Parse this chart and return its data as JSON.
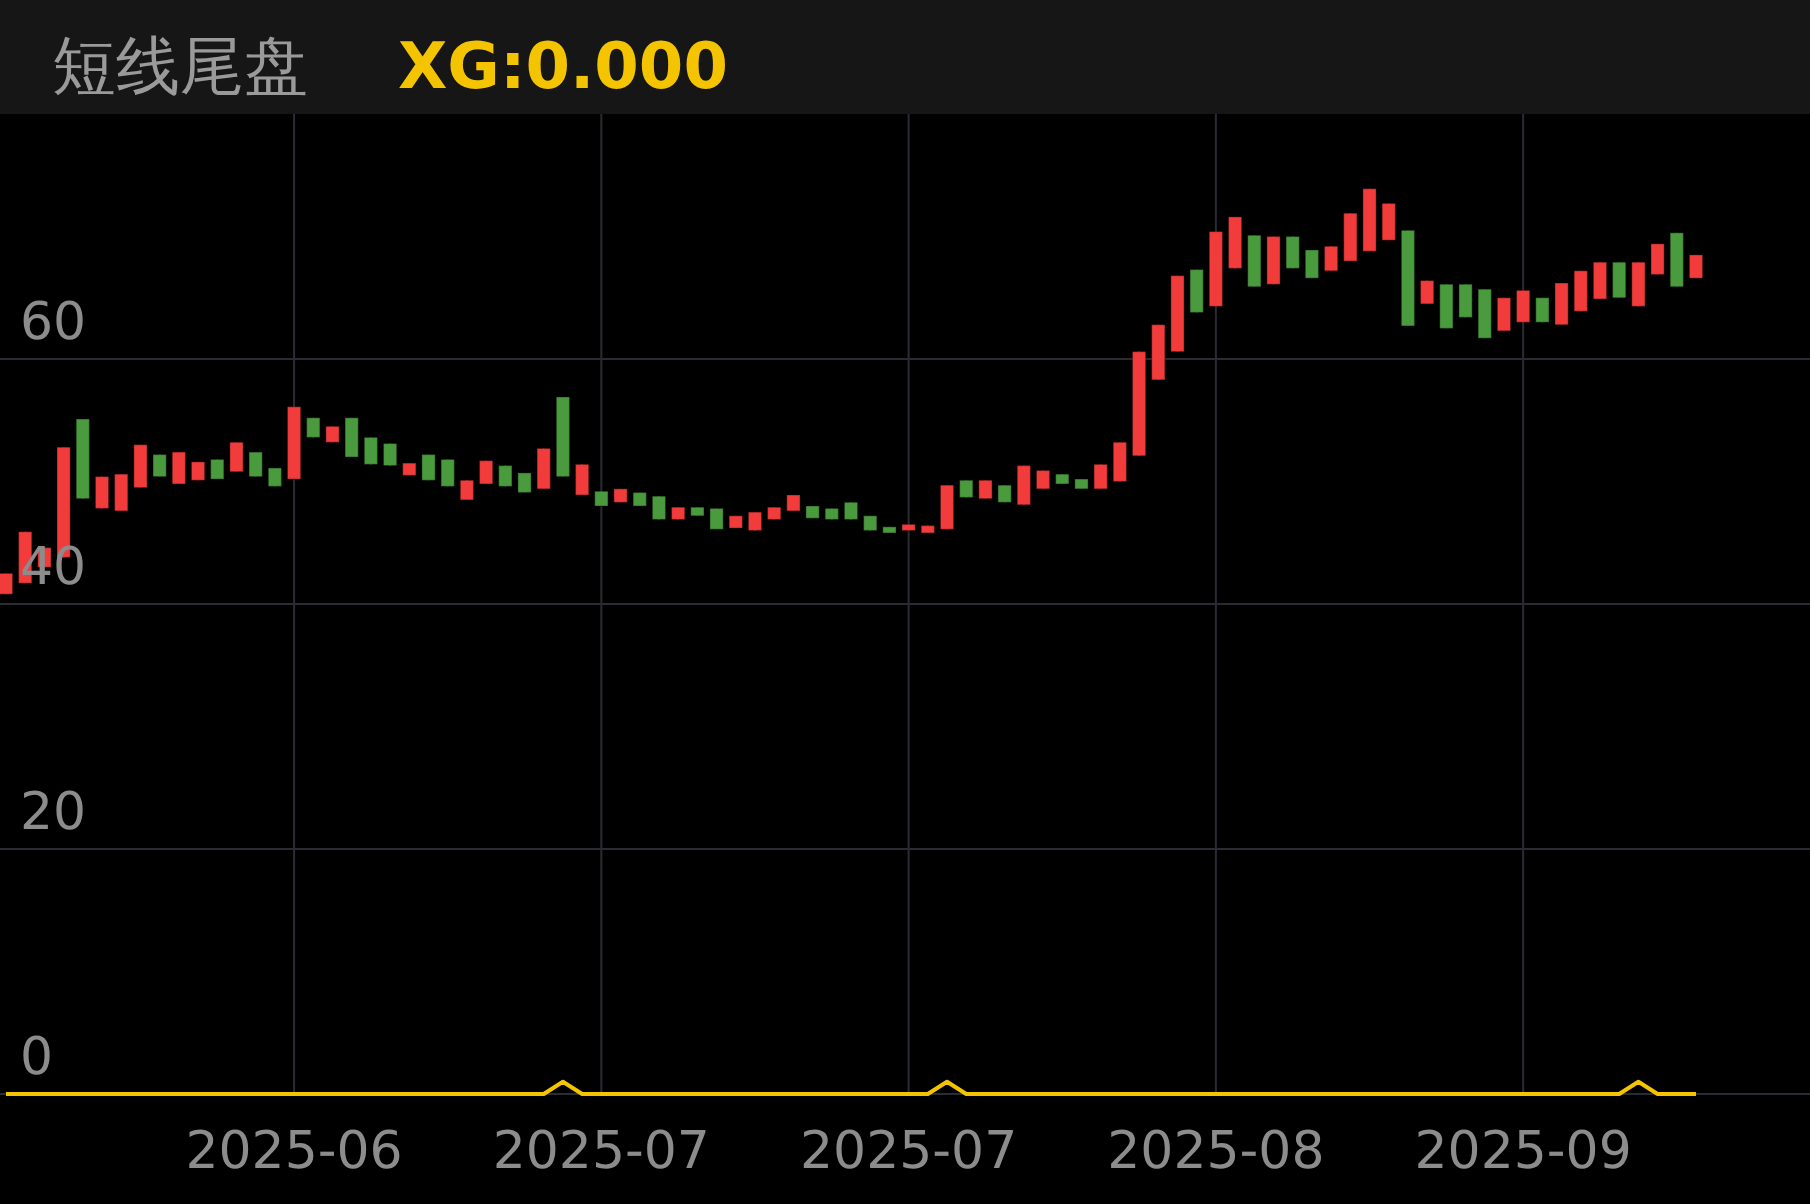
{
  "chart_data": {
    "type": "candlestick",
    "title": "短线尾盘",
    "subtitle": "XG:0.000",
    "categories": [
      null,
      null,
      null,
      null,
      null,
      null,
      null,
      null,
      null,
      null,
      null,
      null,
      null,
      null,
      null,
      "2025-06",
      null,
      null,
      null,
      null,
      null,
      null,
      null,
      null,
      null,
      null,
      null,
      null,
      null,
      null,
      null,
      "2025-07",
      null,
      null,
      null,
      null,
      null,
      null,
      null,
      null,
      null,
      null,
      null,
      null,
      null,
      null,
      null,
      "2025-07",
      null,
      null,
      null,
      null,
      null,
      null,
      null,
      null,
      null,
      null,
      null,
      null,
      null,
      null,
      null,
      "2025-08",
      null,
      null,
      null,
      null,
      null,
      null,
      null,
      null,
      null,
      null,
      null,
      null,
      null,
      null,
      null,
      "2025-09",
      null,
      null,
      null,
      null,
      null,
      null,
      null,
      null,
      null
    ],
    "ylim": [
      0,
      80
    ],
    "yticks": [
      0,
      20,
      40,
      60
    ],
    "grid": true,
    "series": [
      {
        "type": "candlestick",
        "colors": [
          "#f23c3c",
          "#f23c3c",
          "#f23c3c",
          "#f23c3c",
          "#4a9a3e",
          "#f23c3c",
          "#f23c3c",
          "#f23c3c",
          "#4a9a3e",
          "#f23c3c",
          "#f23c3c",
          "#4a9a3e",
          "#f23c3c",
          "#4a9a3e",
          "#4a9a3e",
          "#f23c3c",
          "#4a9a3e",
          "#f23c3c",
          "#4a9a3e",
          "#4a9a3e",
          "#4a9a3e",
          "#f23c3c",
          "#4a9a3e",
          "#4a9a3e",
          "#f23c3c",
          "#f23c3c",
          "#4a9a3e",
          "#4a9a3e",
          "#f23c3c",
          "#4a9a3e",
          "#f23c3c",
          "#4a9a3e",
          "#f23c3c",
          "#4a9a3e",
          "#4a9a3e",
          "#f23c3c",
          "#4a9a3e",
          "#4a9a3e",
          "#f23c3c",
          "#f23c3c",
          "#f23c3c",
          "#f23c3c",
          "#4a9a3e",
          "#4a9a3e",
          "#4a9a3e",
          "#4a9a3e",
          "#4a9a3e",
          "#f23c3c",
          "#f23c3c",
          "#f23c3c",
          "#4a9a3e",
          "#f23c3c",
          "#4a9a3e",
          "#f23c3c",
          "#f23c3c",
          "#4a9a3e",
          "#4a9a3e",
          "#f23c3c",
          "#f23c3c",
          "#f23c3c",
          "#f23c3c",
          "#f23c3c",
          "#4a9a3e",
          "#f23c3c",
          "#f23c3c",
          "#4a9a3e",
          "#f23c3c",
          "#4a9a3e",
          "#4a9a3e",
          "#f23c3c",
          "#f23c3c",
          "#f23c3c",
          "#f23c3c",
          "#4a9a3e",
          "#f23c3c",
          "#4a9a3e",
          "#4a9a3e",
          "#4a9a3e",
          "#f23c3c",
          "#f23c3c",
          "#4a9a3e",
          "#f23c3c",
          "#f23c3c",
          "#f23c3c",
          "#4a9a3e",
          "#f23c3c",
          "#f23c3c",
          "#4a9a3e",
          "#f23c3c"
        ],
        "ohlc": [
          [
            40.8,
            42.5,
            40.8,
            42.5
          ],
          [
            41.7,
            45.9,
            41.7,
            45.9
          ],
          [
            43.0,
            44.6,
            43.0,
            44.6
          ],
          [
            43.8,
            52.8,
            43.8,
            52.8
          ],
          [
            55.1,
            55.1,
            48.6,
            48.6
          ],
          [
            47.8,
            50.4,
            47.8,
            50.4
          ],
          [
            47.6,
            50.6,
            47.6,
            50.6
          ],
          [
            49.5,
            53.0,
            49.5,
            53.0
          ],
          [
            52.2,
            52.2,
            50.4,
            50.4
          ],
          [
            49.8,
            52.4,
            49.8,
            52.4
          ],
          [
            50.1,
            51.6,
            50.1,
            51.6
          ],
          [
            51.8,
            51.8,
            50.2,
            50.2
          ],
          [
            50.8,
            53.2,
            50.8,
            53.2
          ],
          [
            52.4,
            52.4,
            50.4,
            50.4
          ],
          [
            51.1,
            51.1,
            49.6,
            49.6
          ],
          [
            50.2,
            56.1,
            50.2,
            56.1
          ],
          [
            55.2,
            55.2,
            53.6,
            53.6
          ],
          [
            53.2,
            54.5,
            53.2,
            54.5
          ],
          [
            55.2,
            55.2,
            52.0,
            52.0
          ],
          [
            53.6,
            53.6,
            51.4,
            51.4
          ],
          [
            53.1,
            53.1,
            51.3,
            51.3
          ],
          [
            50.5,
            51.5,
            50.5,
            51.5
          ],
          [
            52.2,
            52.2,
            50.1,
            50.1
          ],
          [
            51.8,
            51.8,
            49.6,
            49.6
          ],
          [
            48.5,
            50.1,
            48.5,
            50.1
          ],
          [
            49.8,
            51.7,
            49.8,
            51.7
          ],
          [
            51.3,
            51.3,
            49.6,
            49.6
          ],
          [
            50.7,
            50.7,
            49.1,
            49.1
          ],
          [
            49.4,
            52.7,
            49.4,
            52.7
          ],
          [
            56.9,
            56.9,
            50.4,
            50.4
          ],
          [
            48.9,
            51.4,
            48.9,
            51.4
          ],
          [
            49.2,
            49.2,
            48.0,
            48.0
          ],
          [
            48.3,
            49.4,
            48.3,
            49.4
          ],
          [
            49.1,
            49.1,
            48.0,
            48.0
          ],
          [
            48.8,
            48.8,
            46.9,
            46.9
          ],
          [
            46.9,
            47.9,
            46.9,
            47.9
          ],
          [
            47.9,
            47.9,
            47.2,
            47.2
          ],
          [
            47.8,
            47.8,
            46.1,
            46.1
          ],
          [
            46.2,
            47.2,
            46.2,
            47.2
          ],
          [
            46.0,
            47.5,
            46.0,
            47.5
          ],
          [
            46.9,
            47.9,
            46.9,
            47.9
          ],
          [
            47.6,
            48.9,
            47.6,
            48.9
          ],
          [
            48.0,
            48.0,
            47.0,
            47.0
          ],
          [
            47.8,
            47.8,
            46.9,
            46.9
          ],
          [
            48.3,
            48.3,
            46.9,
            46.9
          ],
          [
            47.2,
            47.2,
            46.0,
            46.0
          ],
          [
            46.3,
            46.3,
            45.8,
            45.8
          ],
          [
            46.0,
            46.5,
            46.0,
            46.5
          ],
          [
            45.8,
            46.4,
            45.8,
            46.4
          ],
          [
            46.1,
            49.7,
            46.1,
            49.7
          ],
          [
            50.1,
            50.1,
            48.7,
            48.7
          ],
          [
            48.6,
            50.1,
            48.6,
            50.1
          ],
          [
            49.7,
            49.7,
            48.3,
            48.3
          ],
          [
            48.1,
            51.3,
            48.1,
            51.3
          ],
          [
            49.4,
            50.9,
            49.4,
            50.9
          ],
          [
            50.6,
            50.6,
            49.8,
            49.8
          ],
          [
            50.2,
            50.2,
            49.4,
            49.4
          ],
          [
            49.4,
            51.4,
            49.4,
            51.4
          ],
          [
            50.0,
            53.2,
            50.0,
            53.2
          ],
          [
            52.1,
            60.6,
            52.1,
            60.6
          ],
          [
            58.3,
            62.8,
            58.3,
            62.8
          ],
          [
            60.6,
            66.8,
            60.6,
            66.8
          ],
          [
            67.3,
            67.3,
            63.8,
            63.8
          ],
          [
            64.3,
            70.4,
            64.3,
            70.4
          ],
          [
            67.4,
            71.6,
            67.4,
            71.6
          ],
          [
            70.1,
            70.1,
            65.9,
            65.9
          ],
          [
            66.1,
            70.0,
            66.1,
            70.0
          ],
          [
            70.0,
            70.0,
            67.4,
            67.4
          ],
          [
            68.9,
            68.9,
            66.6,
            66.6
          ],
          [
            67.2,
            69.2,
            67.2,
            69.2
          ],
          [
            68.0,
            71.9,
            68.0,
            71.9
          ],
          [
            68.8,
            73.9,
            68.8,
            73.9
          ],
          [
            69.7,
            72.7,
            69.7,
            72.7
          ],
          [
            70.5,
            70.5,
            62.7,
            62.7
          ],
          [
            64.5,
            66.4,
            64.5,
            66.4
          ],
          [
            66.1,
            66.1,
            62.5,
            62.5
          ],
          [
            66.1,
            66.1,
            63.4,
            63.4
          ],
          [
            65.7,
            65.7,
            61.7,
            61.7
          ],
          [
            62.3,
            65.0,
            62.3,
            65.0
          ],
          [
            63.0,
            65.6,
            63.0,
            65.6
          ],
          [
            65.0,
            65.0,
            63.0,
            63.0
          ],
          [
            62.8,
            66.2,
            62.8,
            66.2
          ],
          [
            63.9,
            67.2,
            63.9,
            67.2
          ],
          [
            64.9,
            67.9,
            64.9,
            67.9
          ],
          [
            67.9,
            67.9,
            65.0,
            65.0
          ],
          [
            64.3,
            67.9,
            64.3,
            67.9
          ],
          [
            66.9,
            69.4,
            66.9,
            69.4
          ],
          [
            70.3,
            70.3,
            65.9,
            65.9
          ],
          [
            66.6,
            68.5,
            66.6,
            68.5
          ]
        ]
      },
      {
        "type": "line",
        "color": "#f5c400",
        "values": [
          0,
          0,
          0,
          0,
          0,
          0,
          0,
          0,
          0,
          0,
          0,
          0,
          0,
          0,
          0,
          0,
          0,
          0,
          0,
          0,
          0,
          0,
          0,
          0,
          0,
          0,
          0,
          0,
          0,
          1,
          0,
          0,
          0,
          0,
          0,
          0,
          0,
          0,
          0,
          0,
          0,
          0,
          0,
          0,
          0,
          0,
          0,
          0,
          0,
          1,
          0,
          0,
          0,
          0,
          0,
          0,
          0,
          0,
          0,
          0,
          0,
          0,
          0,
          0,
          0,
          0,
          0,
          0,
          0,
          0,
          0,
          0,
          0,
          0,
          0,
          0,
          0,
          0,
          0,
          0,
          0,
          0,
          0,
          0,
          0,
          1,
          0,
          0,
          0
        ]
      }
    ]
  }
}
